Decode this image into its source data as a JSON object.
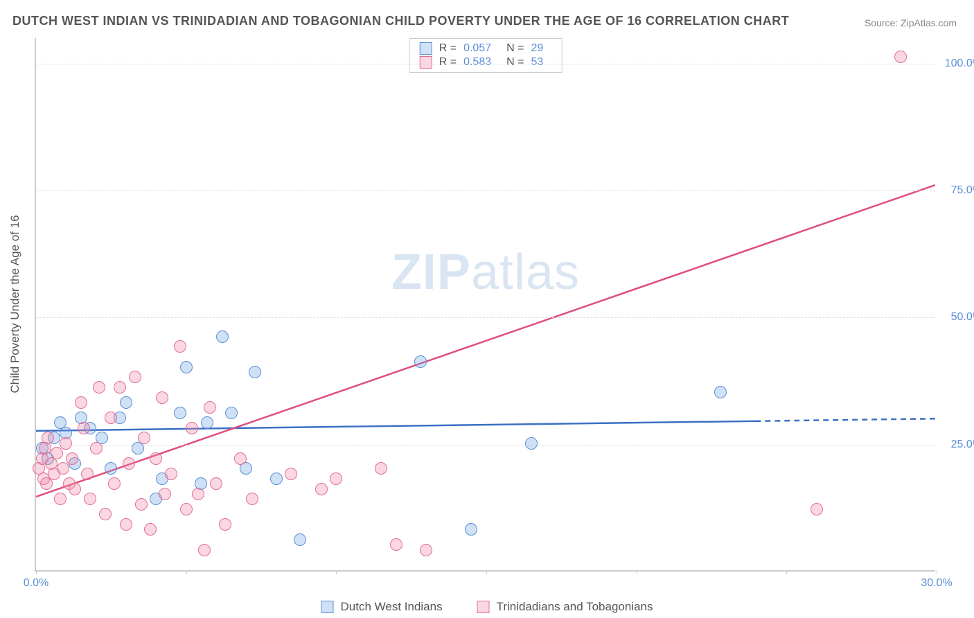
{
  "title": "DUTCH WEST INDIAN VS TRINIDADIAN AND TOBAGONIAN CHILD POVERTY UNDER THE AGE OF 16 CORRELATION CHART",
  "source_label": "Source: ZipAtlas.com",
  "watermark": {
    "bold": "ZIP",
    "rest": "atlas"
  },
  "y_axis_label": "Child Poverty Under the Age of 16",
  "chart": {
    "type": "scatter",
    "xlim": [
      0,
      30
    ],
    "ylim": [
      0,
      105
    ],
    "x_ticks": [
      0,
      5,
      10,
      15,
      20,
      25,
      30
    ],
    "x_tick_labels": {
      "0": "0.0%",
      "30": "30.0%"
    },
    "y_ticks": [
      25,
      50,
      75,
      100
    ],
    "y_tick_labels": {
      "25": "25.0%",
      "50": "50.0%",
      "75": "75.0%",
      "100": "100.0%"
    },
    "background_color": "#ffffff",
    "grid_color": "#dddddd",
    "axis_color": "#cccccc",
    "tick_label_color": "#5b8dd6",
    "marker_radius": 9
  },
  "series": [
    {
      "name": "Dutch West Indians",
      "fill": "rgba(120,170,230,0.35)",
      "stroke": "#5b8dd6",
      "trend": {
        "slope": 0.08,
        "intercept": 27.5,
        "color": "#3b6fc4",
        "width": 2.5,
        "solid_until_x": 24,
        "dashed_after": true
      },
      "R": "0.057",
      "N": "29",
      "points": [
        [
          0.2,
          24
        ],
        [
          0.4,
          22
        ],
        [
          0.6,
          26
        ],
        [
          0.8,
          29
        ],
        [
          1.0,
          27
        ],
        [
          1.3,
          21
        ],
        [
          1.5,
          30
        ],
        [
          1.8,
          28
        ],
        [
          2.2,
          26
        ],
        [
          2.5,
          20
        ],
        [
          2.8,
          30
        ],
        [
          3.0,
          33
        ],
        [
          3.4,
          24
        ],
        [
          4.0,
          14
        ],
        [
          4.2,
          18
        ],
        [
          4.8,
          31
        ],
        [
          5.0,
          40
        ],
        [
          5.5,
          17
        ],
        [
          5.7,
          29
        ],
        [
          6.2,
          46
        ],
        [
          6.5,
          31
        ],
        [
          7.0,
          20
        ],
        [
          7.3,
          39
        ],
        [
          8.0,
          18
        ],
        [
          8.8,
          6
        ],
        [
          12.8,
          41
        ],
        [
          14.5,
          8
        ],
        [
          16.5,
          25
        ],
        [
          22.8,
          35
        ]
      ]
    },
    {
      "name": "Trinidadians and Tobagonians",
      "fill": "rgba(240,140,170,0.35)",
      "stroke": "#e16f93",
      "trend": {
        "slope": 2.05,
        "intercept": 14.5,
        "color": "#e04d7c",
        "width": 2.5,
        "solid_until_x": 30,
        "dashed_after": false
      },
      "R": "0.583",
      "N": "53",
      "points": [
        [
          0.1,
          20
        ],
        [
          0.2,
          22
        ],
        [
          0.25,
          18
        ],
        [
          0.3,
          24
        ],
        [
          0.35,
          17
        ],
        [
          0.4,
          26
        ],
        [
          0.5,
          21
        ],
        [
          0.6,
          19
        ],
        [
          0.7,
          23
        ],
        [
          0.8,
          14
        ],
        [
          0.9,
          20
        ],
        [
          1.0,
          25
        ],
        [
          1.1,
          17
        ],
        [
          1.2,
          22
        ],
        [
          1.3,
          16
        ],
        [
          1.5,
          33
        ],
        [
          1.6,
          28
        ],
        [
          1.7,
          19
        ],
        [
          1.8,
          14
        ],
        [
          2.0,
          24
        ],
        [
          2.1,
          36
        ],
        [
          2.3,
          11
        ],
        [
          2.5,
          30
        ],
        [
          2.6,
          17
        ],
        [
          2.8,
          36
        ],
        [
          3.0,
          9
        ],
        [
          3.1,
          21
        ],
        [
          3.3,
          38
        ],
        [
          3.5,
          13
        ],
        [
          3.6,
          26
        ],
        [
          3.8,
          8
        ],
        [
          4.0,
          22
        ],
        [
          4.2,
          34
        ],
        [
          4.3,
          15
        ],
        [
          4.5,
          19
        ],
        [
          4.8,
          44
        ],
        [
          5.0,
          12
        ],
        [
          5.2,
          28
        ],
        [
          5.4,
          15
        ],
        [
          5.6,
          4
        ],
        [
          5.8,
          32
        ],
        [
          6.0,
          17
        ],
        [
          6.3,
          9
        ],
        [
          6.8,
          22
        ],
        [
          7.2,
          14
        ],
        [
          8.5,
          19
        ],
        [
          9.5,
          16
        ],
        [
          10.0,
          18
        ],
        [
          11.5,
          20
        ],
        [
          12.0,
          5
        ],
        [
          13.0,
          4
        ],
        [
          28.8,
          101
        ],
        [
          26.0,
          12
        ]
      ]
    }
  ],
  "stats_box_label_R": "R =",
  "stats_box_label_N": "N =",
  "legend": {
    "series1_label": "Dutch West Indians",
    "series2_label": "Trinidadians and Tobagonians"
  }
}
